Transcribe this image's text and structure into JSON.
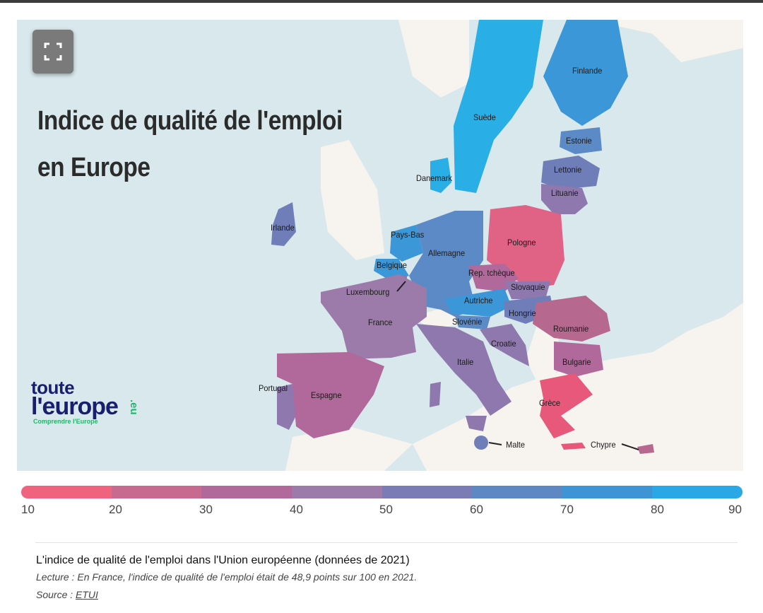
{
  "map": {
    "title": "Indice de qualité de l'emploi en Europe",
    "fullscreen_icon": "expand-icon",
    "countries": [
      {
        "name": "Suède",
        "value": 85,
        "color": "#29aee6"
      },
      {
        "name": "Finlande",
        "value": 75,
        "color": "#3c97d8"
      },
      {
        "name": "Estonie",
        "value": 65,
        "color": "#5b8ac6"
      },
      {
        "name": "Lettonie",
        "value": 55,
        "color": "#6f7eb8"
      },
      {
        "name": "Lituanie",
        "value": 45,
        "color": "#8e78ae"
      },
      {
        "name": "Danemark",
        "value": 85,
        "color": "#29aee6"
      },
      {
        "name": "Irlande",
        "value": 55,
        "color": "#6f7eb8"
      },
      {
        "name": "Pays-Bas",
        "value": 75,
        "color": "#3c97d8"
      },
      {
        "name": "Belgique",
        "value": 75,
        "color": "#3c97d8"
      },
      {
        "name": "Luxembourg",
        "value": 45,
        "color": "#8e78ae"
      },
      {
        "name": "Allemagne",
        "value": 65,
        "color": "#5b8ac6"
      },
      {
        "name": "Pologne",
        "value": 15,
        "color": "#e06285"
      },
      {
        "name": "Rep. tchèque",
        "value": 35,
        "color": "#b1689a"
      },
      {
        "name": "Slovaquie",
        "value": 45,
        "color": "#8e78ae"
      },
      {
        "name": "Autriche",
        "value": 75,
        "color": "#3c97d8"
      },
      {
        "name": "Hongrie",
        "value": 55,
        "color": "#6f7eb8"
      },
      {
        "name": "Slovénie",
        "value": 65,
        "color": "#5b8ac6"
      },
      {
        "name": "France",
        "value": 48.9,
        "color": "#9c7aaa"
      },
      {
        "name": "Roumanie",
        "value": 25,
        "color": "#b6688f"
      },
      {
        "name": "Croatie",
        "value": 45,
        "color": "#8e78ae"
      },
      {
        "name": "Italie",
        "value": 45,
        "color": "#8e78ae"
      },
      {
        "name": "Bulgarie",
        "value": 35,
        "color": "#b1689a"
      },
      {
        "name": "Portugal",
        "value": 45,
        "color": "#8e78ae"
      },
      {
        "name": "Espagne",
        "value": 35,
        "color": "#b1689a"
      },
      {
        "name": "Grèce",
        "value": 15,
        "color": "#e8587a"
      },
      {
        "name": "Malte",
        "value": 55,
        "color": "#6f7eb8"
      },
      {
        "name": "Chypre",
        "value": 25,
        "color": "#b6688f"
      }
    ]
  },
  "logo": {
    "line1": "toute",
    "line2": "l'europe",
    "suffix": ".eu",
    "tagline": "Comprendre l'Europe"
  },
  "scale": {
    "colors": [
      "#f0637f",
      "#c8698f",
      "#b1689a",
      "#9c7aaa",
      "#7b7cb6",
      "#5e88c4",
      "#3f94d6",
      "#2aa8e6"
    ],
    "ticks": [
      "10",
      "20",
      "30",
      "40",
      "50",
      "60",
      "70",
      "80",
      "90"
    ]
  },
  "footer": {
    "title": "L'indice de qualité de l'emploi dans l'Union européenne (données de 2021)",
    "reading": "Lecture : En France, l'indice de qualité de l'emploi était de 48,9 points sur 100 en 2021.",
    "source_label": "Source : ",
    "source_link": "ETUI"
  }
}
